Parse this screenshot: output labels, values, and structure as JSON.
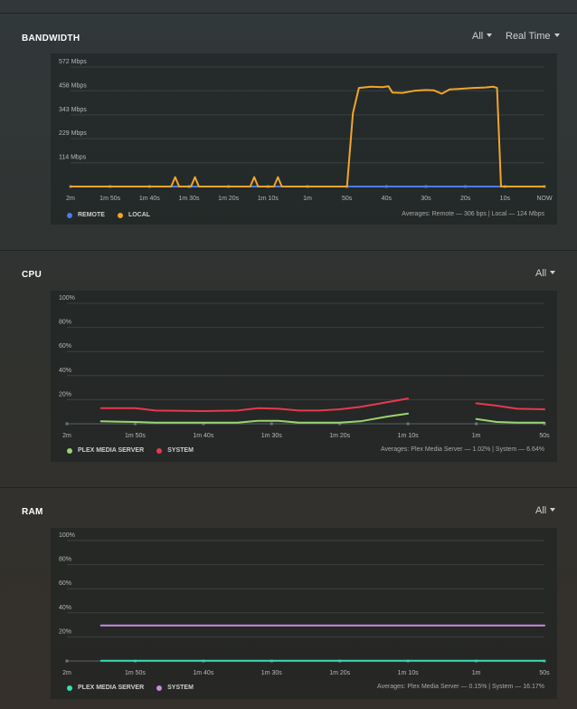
{
  "colors": {
    "remote": "#4a7cf0",
    "local": "#f2a52a",
    "plex": "#9ad36f",
    "system": "#e8384f",
    "ram_plex": "#35e0b4",
    "ram_system": "#c98be0",
    "grid": "#3b4042",
    "axis": "#57606a"
  },
  "bandwidth": {
    "title": "BANDWIDTH",
    "dropdown_all": "All",
    "dropdown_time": "Real Time",
    "legend": [
      {
        "label": "REMOTE",
        "color_key": "remote"
      },
      {
        "label": "LOCAL",
        "color_key": "local"
      }
    ],
    "averages": "Averages: Remote — 306 bps | Local — 124 Mbps"
  },
  "cpu": {
    "title": "CPU",
    "dropdown_all": "All",
    "legend": [
      {
        "label": "PLEX MEDIA SERVER",
        "color_key": "plex"
      },
      {
        "label": "SYSTEM",
        "color_key": "system"
      }
    ],
    "averages": "Averages: Plex Media Server — 1.02% | System — 6.64%"
  },
  "ram": {
    "title": "RAM",
    "dropdown_all": "All",
    "legend": [
      {
        "label": "PLEX MEDIA SERVER",
        "color_key": "ram_plex"
      },
      {
        "label": "SYSTEM",
        "color_key": "ram_system"
      }
    ],
    "averages": "Averages: Plex Media Server — 0.15% | System — 16.17%"
  },
  "chart_data": [
    {
      "type": "line",
      "title": "BANDWIDTH",
      "ylabel": "Mbps",
      "ylim": [
        0,
        572
      ],
      "yticks": [
        114,
        229,
        343,
        458,
        572
      ],
      "ytick_labels": [
        "114 Mbps",
        "229 Mbps",
        "343 Mbps",
        "458 Mbps",
        "572 Mbps"
      ],
      "xlim": [
        -120,
        0
      ],
      "xticks": [
        -120,
        -110,
        -100,
        -90,
        -80,
        -70,
        -60,
        -50,
        -40,
        -30,
        -20,
        -10,
        0
      ],
      "xtick_labels": [
        "2m",
        "1m 50s",
        "1m 40s",
        "1m 30s",
        "1m 20s",
        "1m 10s",
        "1m",
        "50s",
        "40s",
        "30s",
        "20s",
        "10s",
        "NOW"
      ],
      "series": [
        {
          "name": "REMOTE",
          "color_key": "remote",
          "points": [
            [
              -120,
              0
            ],
            [
              0,
              0
            ]
          ]
        },
        {
          "name": "LOCAL",
          "color_key": "local",
          "points": [
            [
              -120,
              0
            ],
            [
              -94.5,
              0
            ],
            [
              -93.5,
              45
            ],
            [
              -92.5,
              0
            ],
            [
              -89.5,
              0
            ],
            [
              -88.5,
              45
            ],
            [
              -87.5,
              0
            ],
            [
              -74.5,
              0
            ],
            [
              -73.5,
              45
            ],
            [
              -72.5,
              0
            ],
            [
              -68.5,
              0
            ],
            [
              -67.5,
              45
            ],
            [
              -66.5,
              0
            ],
            [
              -50,
              0
            ],
            [
              -48.5,
              350
            ],
            [
              -47,
              472
            ],
            [
              -44,
              478
            ],
            [
              -41,
              476
            ],
            [
              -39.5,
              480
            ],
            [
              -38.5,
              450
            ],
            [
              -36,
              448
            ],
            [
              -33,
              458
            ],
            [
              -30,
              462
            ],
            [
              -28,
              460
            ],
            [
              -26,
              444
            ],
            [
              -24,
              465
            ],
            [
              -21,
              468
            ],
            [
              -18,
              472
            ],
            [
              -15,
              474
            ],
            [
              -13,
              478
            ],
            [
              -12,
              472
            ],
            [
              -11,
              0
            ],
            [
              0,
              0
            ]
          ]
        }
      ]
    },
    {
      "type": "line",
      "title": "CPU",
      "ylabel": "%",
      "ylim": [
        0,
        100
      ],
      "yticks": [
        20,
        40,
        60,
        80,
        100
      ],
      "ytick_labels": [
        "20%",
        "40%",
        "60%",
        "80%",
        "100%"
      ],
      "xlim": [
        -120,
        -50
      ],
      "xticks": [
        -120,
        -110,
        -100,
        -90,
        -80,
        -70,
        -60,
        -50
      ],
      "xtick_labels": [
        "2m",
        "1m 50s",
        "1m 40s",
        "1m 30s",
        "1m 20s",
        "1m 10s",
        "1m",
        "50s"
      ],
      "series": [
        {
          "name": "PLEX MEDIA SERVER",
          "color_key": "plex",
          "segments": [
            [
              [
                -115,
                2
              ],
              [
                -110,
                1.5
              ],
              [
                -107,
                1
              ],
              [
                -100,
                1
              ],
              [
                -95,
                1
              ],
              [
                -92,
                2.5
              ],
              [
                -89,
                2.5
              ],
              [
                -86,
                1
              ],
              [
                -83,
                1
              ],
              [
                -80,
                1
              ],
              [
                -77,
                2
              ],
              [
                -73,
                6
              ],
              [
                -70,
                8.5
              ]
            ],
            [
              [
                -60,
                4
              ],
              [
                -57,
                1.5
              ],
              [
                -54,
                1
              ],
              [
                -50,
                1
              ]
            ]
          ]
        },
        {
          "name": "SYSTEM",
          "color_key": "system",
          "segments": [
            [
              [
                -115,
                13
              ],
              [
                -110,
                13
              ],
              [
                -107,
                11
              ],
              [
                -100,
                10.5
              ],
              [
                -95,
                11
              ],
              [
                -92,
                13
              ],
              [
                -89,
                12.5
              ],
              [
                -86,
                11
              ],
              [
                -83,
                11
              ],
              [
                -80,
                12
              ],
              [
                -77,
                14
              ],
              [
                -73,
                18
              ],
              [
                -70,
                21
              ]
            ],
            [
              [
                -60,
                17
              ],
              [
                -57,
                15
              ],
              [
                -54,
                12.5
              ],
              [
                -50,
                12
              ]
            ]
          ]
        }
      ]
    },
    {
      "type": "line",
      "title": "RAM",
      "ylabel": "%",
      "ylim": [
        0,
        100
      ],
      "yticks": [
        20,
        40,
        60,
        80,
        100
      ],
      "ytick_labels": [
        "20%",
        "40%",
        "60%",
        "80%",
        "100%"
      ],
      "xlim": [
        -120,
        -50
      ],
      "xticks": [
        -120,
        -110,
        -100,
        -90,
        -80,
        -70,
        -60,
        -50
      ],
      "xtick_labels": [
        "2m",
        "1m 50s",
        "1m 40s",
        "1m 30s",
        "1m 20s",
        "1m 10s",
        "1m",
        "50s"
      ],
      "series": [
        {
          "name": "PLEX MEDIA SERVER",
          "color_key": "ram_plex",
          "segments": [
            [
              [
                -115,
                0.2
              ],
              [
                -50,
                0.2
              ]
            ]
          ]
        },
        {
          "name": "SYSTEM",
          "color_key": "ram_system",
          "segments": [
            [
              [
                -115,
                29.5
              ],
              [
                -50,
                29.5
              ]
            ]
          ]
        }
      ]
    }
  ]
}
